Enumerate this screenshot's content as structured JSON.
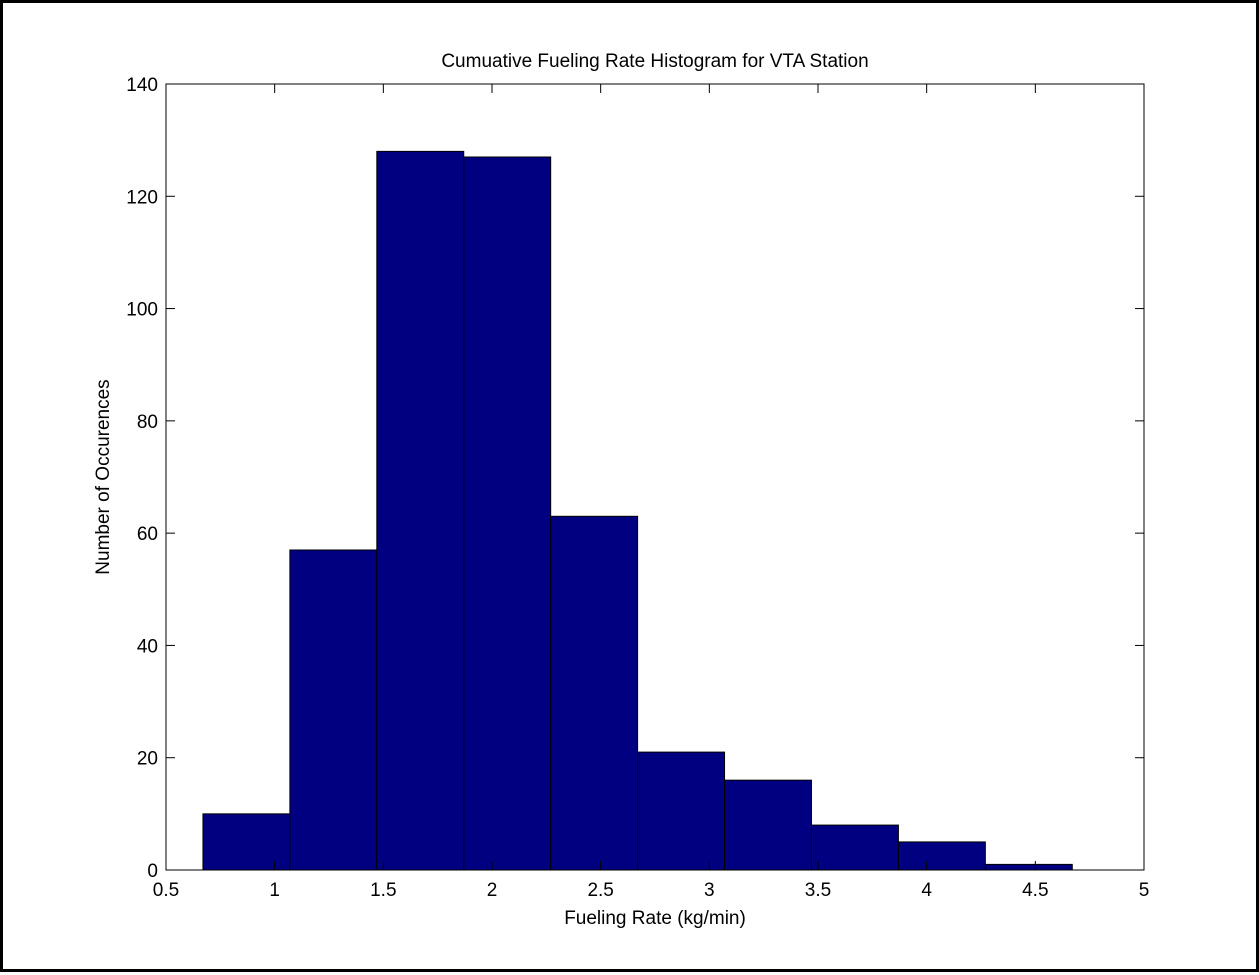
{
  "chart_data": {
    "type": "bar",
    "title": "Cumuative Fueling Rate Histogram for VTA Station",
    "xlabel": "Fueling Rate (kg/min)",
    "ylabel": "Number of Occurences",
    "xlim": [
      0.5,
      5
    ],
    "ylim": [
      0,
      140
    ],
    "xticks": [
      "0.5",
      "1",
      "1.5",
      "2",
      "2.5",
      "3",
      "3.5",
      "4",
      "4.5",
      "5"
    ],
    "yticks": [
      "0",
      "20",
      "40",
      "60",
      "80",
      "100",
      "120",
      "140"
    ],
    "bins": [
      {
        "x0": 0.67,
        "x1": 1.07,
        "count": 10
      },
      {
        "x0": 1.07,
        "x1": 1.47,
        "count": 57
      },
      {
        "x0": 1.47,
        "x1": 1.87,
        "count": 128
      },
      {
        "x0": 1.87,
        "x1": 2.27,
        "count": 127
      },
      {
        "x0": 2.27,
        "x1": 2.67,
        "count": 63
      },
      {
        "x0": 2.67,
        "x1": 3.07,
        "count": 21
      },
      {
        "x0": 3.07,
        "x1": 3.47,
        "count": 16
      },
      {
        "x0": 3.47,
        "x1": 3.87,
        "count": 8
      },
      {
        "x0": 3.87,
        "x1": 4.27,
        "count": 5
      },
      {
        "x0": 4.27,
        "x1": 4.67,
        "count": 1
      }
    ],
    "bar_color": "#000080",
    "edge_color": "#000000",
    "grid": false,
    "legend": "none"
  }
}
